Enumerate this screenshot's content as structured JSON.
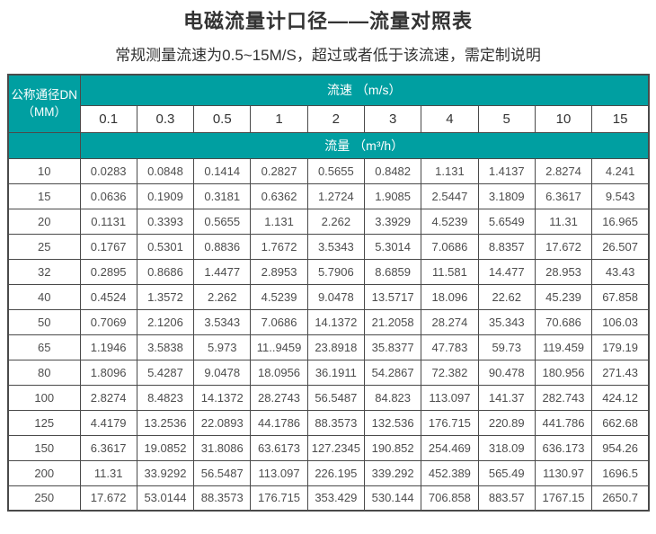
{
  "page": {
    "title": "电磁流量计口径——流量对照表",
    "subtitle": "常规测量流速为0.5~15M/S，超过或者低于该流速，需定制说明"
  },
  "colors": {
    "header_teal": "#009FA1",
    "grid_border": "#4A4A4A",
    "accent_border": "#A2402C"
  },
  "table": {
    "corner_header": {
      "line1": "公称通径DN",
      "line2": "（MM）"
    },
    "velocity_header": "流速 （m/s）",
    "flow_header": "流量 （m³/h）",
    "velocity_values": [
      "0.1",
      "0.3",
      "0.5",
      "1",
      "2",
      "3",
      "4",
      "5",
      "10",
      "15"
    ],
    "rows": [
      {
        "dn": "10",
        "values": [
          "0.0283",
          "0.0848",
          "0.1414",
          "0.2827",
          "0.5655",
          "0.8482",
          "1.131",
          "1.4137",
          "2.8274",
          "4.241"
        ]
      },
      {
        "dn": "15",
        "values": [
          "0.0636",
          "0.1909",
          "0.3181",
          "0.6362",
          "1.2724",
          "1.9085",
          "2.5447",
          "3.1809",
          "6.3617",
          "9.543"
        ]
      },
      {
        "dn": "20",
        "values": [
          "0.1131",
          "0.3393",
          "0.5655",
          "1.131",
          "2.262",
          "3.3929",
          "4.5239",
          "5.6549",
          "11.31",
          "16.965"
        ]
      },
      {
        "dn": "25",
        "values": [
          "0.1767",
          "0.5301",
          "0.8836",
          "1.7672",
          "3.5343",
          "5.3014",
          "7.0686",
          "8.8357",
          "17.672",
          "26.507"
        ]
      },
      {
        "dn": "32",
        "values": [
          "0.2895",
          "0.8686",
          "1.4477",
          "2.8953",
          "5.7906",
          "8.6859",
          "11.581",
          "14.477",
          "28.953",
          "43.43"
        ]
      },
      {
        "dn": "40",
        "values": [
          "0.4524",
          "1.3572",
          "2.262",
          "4.5239",
          "9.0478",
          "13.5717",
          "18.096",
          "22.62",
          "45.239",
          "67.858"
        ]
      },
      {
        "dn": "50",
        "values": [
          "0.7069",
          "2.1206",
          "3.5343",
          "7.0686",
          "14.1372",
          "21.2058",
          "28.274",
          "35.343",
          "70.686",
          "106.03"
        ]
      },
      {
        "dn": "65",
        "values": [
          "1.1946",
          "3.5838",
          "5.973",
          "11..9459",
          "23.8918",
          "35.8377",
          "47.783",
          "59.73",
          "119.459",
          "179.19"
        ]
      },
      {
        "dn": "80",
        "values": [
          "1.8096",
          "5.4287",
          "9.0478",
          "18.0956",
          "36.1911",
          "54.2867",
          "72.382",
          "90.478",
          "180.956",
          "271.43"
        ]
      },
      {
        "dn": "100",
        "values": [
          "2.8274",
          "8.4823",
          "14.1372",
          "28.2743",
          "56.5487",
          "84.823",
          "113.097",
          "141.37",
          "282.743",
          "424.12"
        ]
      },
      {
        "dn": "125",
        "values": [
          "4.4179",
          "13.2536",
          "22.0893",
          "44.1786",
          "88.3573",
          "132.536",
          "176.715",
          "220.89",
          "441.786",
          "662.68"
        ]
      },
      {
        "dn": "150",
        "values": [
          "6.3617",
          "19.0852",
          "31.8086",
          "63.6173",
          "127.2345",
          "190.852",
          "254.469",
          "318.09",
          "636.173",
          "954.26"
        ]
      },
      {
        "dn": "200",
        "values": [
          "11.31",
          "33.9292",
          "56.5487",
          "113.097",
          "226.195",
          "339.292",
          "452.389",
          "565.49",
          "1130.97",
          "1696.5"
        ]
      },
      {
        "dn": "250",
        "values": [
          "17.672",
          "53.0144",
          "88.3573",
          "176.715",
          "353.429",
          "530.144",
          "706.858",
          "883.57",
          "1767.15",
          "2650.7"
        ]
      }
    ]
  }
}
